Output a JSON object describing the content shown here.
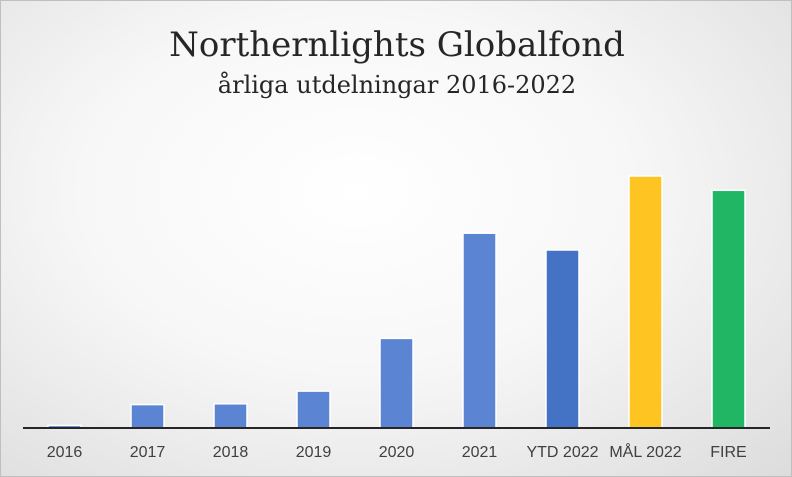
{
  "chart_data": {
    "type": "bar",
    "title": "Northernlights Globalfond",
    "subtitle": "årliga utdelningar 2016-2022",
    "categories": [
      "2016",
      "2017",
      "2018",
      "2019",
      "2020",
      "2021",
      "YTD 2022",
      "MÅL 2022",
      "FIRE"
    ],
    "values": [
      1,
      9,
      9.3,
      14.2,
      34.5,
      75,
      68.5,
      97,
      91.5
    ],
    "ylim": [
      0,
      100
    ],
    "xlabel": "",
    "ylabel": "",
    "grid": false,
    "legend": "none",
    "colors": [
      "#5b84d3",
      "#5b84d3",
      "#5b84d3",
      "#5b84d3",
      "#5b84d3",
      "#5b84d3",
      "#4472c4",
      "#fdc422",
      "#21b663"
    ]
  }
}
